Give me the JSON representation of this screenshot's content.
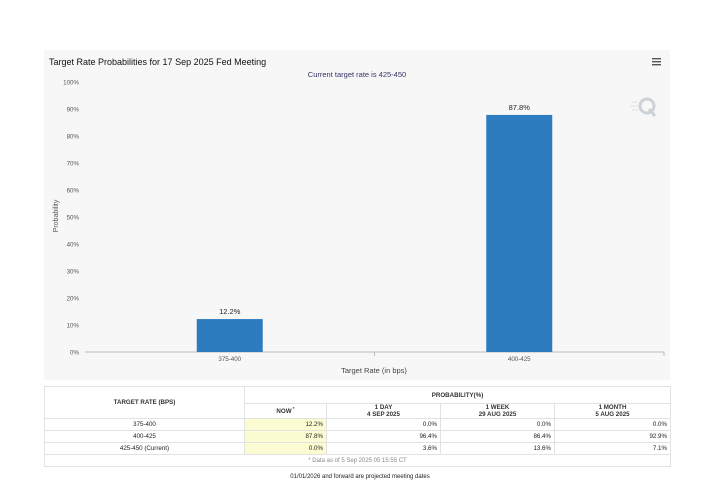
{
  "chart_data": {
    "type": "bar",
    "title": "Target Rate Probabilities for 17 Sep 2025 Fed Meeting",
    "subtitle": "Current target rate is 425-450",
    "xlabel": "Target Rate (in bps)",
    "ylabel": "Probability",
    "categories": [
      "375-400",
      "400-425"
    ],
    "values": [
      12.2,
      87.8
    ],
    "data_labels": [
      "12.2%",
      "87.8%"
    ],
    "ylim": [
      0,
      100
    ],
    "yticks": [
      0,
      10,
      20,
      30,
      40,
      50,
      60,
      70,
      80,
      90,
      100
    ],
    "ytick_labels": [
      "0%",
      "10%",
      "20%",
      "30%",
      "40%",
      "50%",
      "60%",
      "70%",
      "80%",
      "90%",
      "100%"
    ],
    "grid": false,
    "bar_color": "#2e7cc0"
  },
  "table": {
    "header_rate": "TARGET RATE (BPS)",
    "header_prob": "PROBABILITY(%)",
    "columns": [
      {
        "line1": "NOW",
        "line2": "",
        "mark": "*"
      },
      {
        "line1": "1 DAY",
        "line2": "4 SEP 2025",
        "mark": ""
      },
      {
        "line1": "1 WEEK",
        "line2": "29 AUG 2025",
        "mark": ""
      },
      {
        "line1": "1 MONTH",
        "line2": "5 AUG 2025",
        "mark": ""
      }
    ],
    "rows": [
      {
        "rate": "375-400",
        "values": [
          "12.2%",
          "0.0%",
          "0.0%",
          "0.0%"
        ]
      },
      {
        "rate": "400-425",
        "values": [
          "87.8%",
          "96.4%",
          "86.4%",
          "92.9%"
        ]
      },
      {
        "rate": "425-450 (Current)",
        "values": [
          "0.0%",
          "3.6%",
          "13.6%",
          "7.1%"
        ]
      }
    ],
    "data_note": "* Data as of 5 Sep 2025 05:15:55 CT"
  },
  "footnote": "01/01/2026 and forward are projected meeting dates",
  "menu_icon": "hamburger-icon",
  "logo_icon": "q-logo-icon"
}
